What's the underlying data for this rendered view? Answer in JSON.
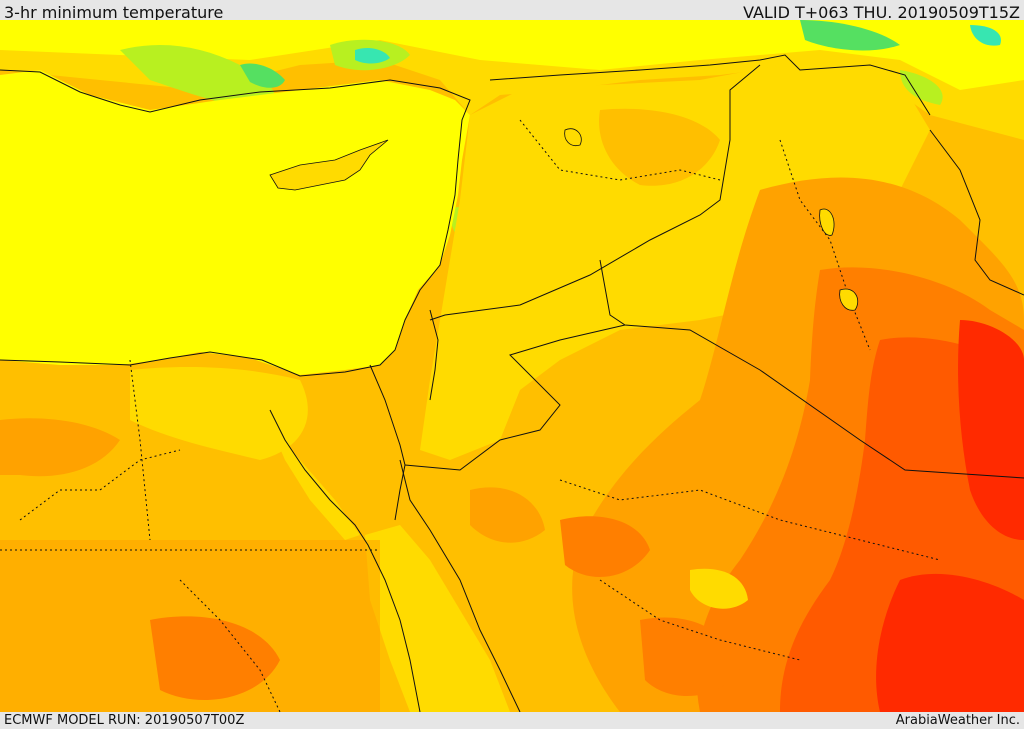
{
  "header": {
    "title": "3-hr minimum temperature",
    "valid": "VALID T+063 THU. 20190509T15Z"
  },
  "footer": {
    "model_run": "ECMWF MODEL RUN: 20190507T00Z",
    "credit": "ArabiaWeather Inc."
  },
  "map": {
    "variable": "3-hr minimum temperature",
    "colors": {
      "cold_green": "#55e061",
      "cyan": "#37e6b1",
      "pale_yellow": "#e9ff1a",
      "yellow": "#ffff00",
      "gold": "#ffdb00",
      "light_orange": "#ffbf00",
      "orange": "#ffa200",
      "dark_orange": "#ff7f00",
      "red_orange": "#ff5a00",
      "red": "#ff2a00"
    }
  }
}
